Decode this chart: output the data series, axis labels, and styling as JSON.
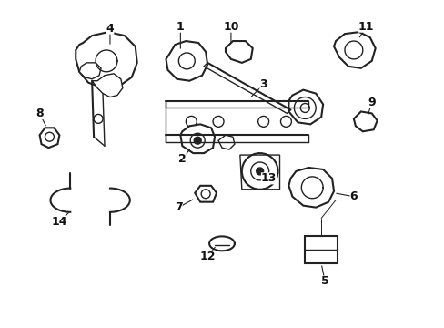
{
  "background_color": "#ffffff",
  "figsize": [
    4.89,
    3.6
  ],
  "dpi": 100,
  "image_data": ""
}
